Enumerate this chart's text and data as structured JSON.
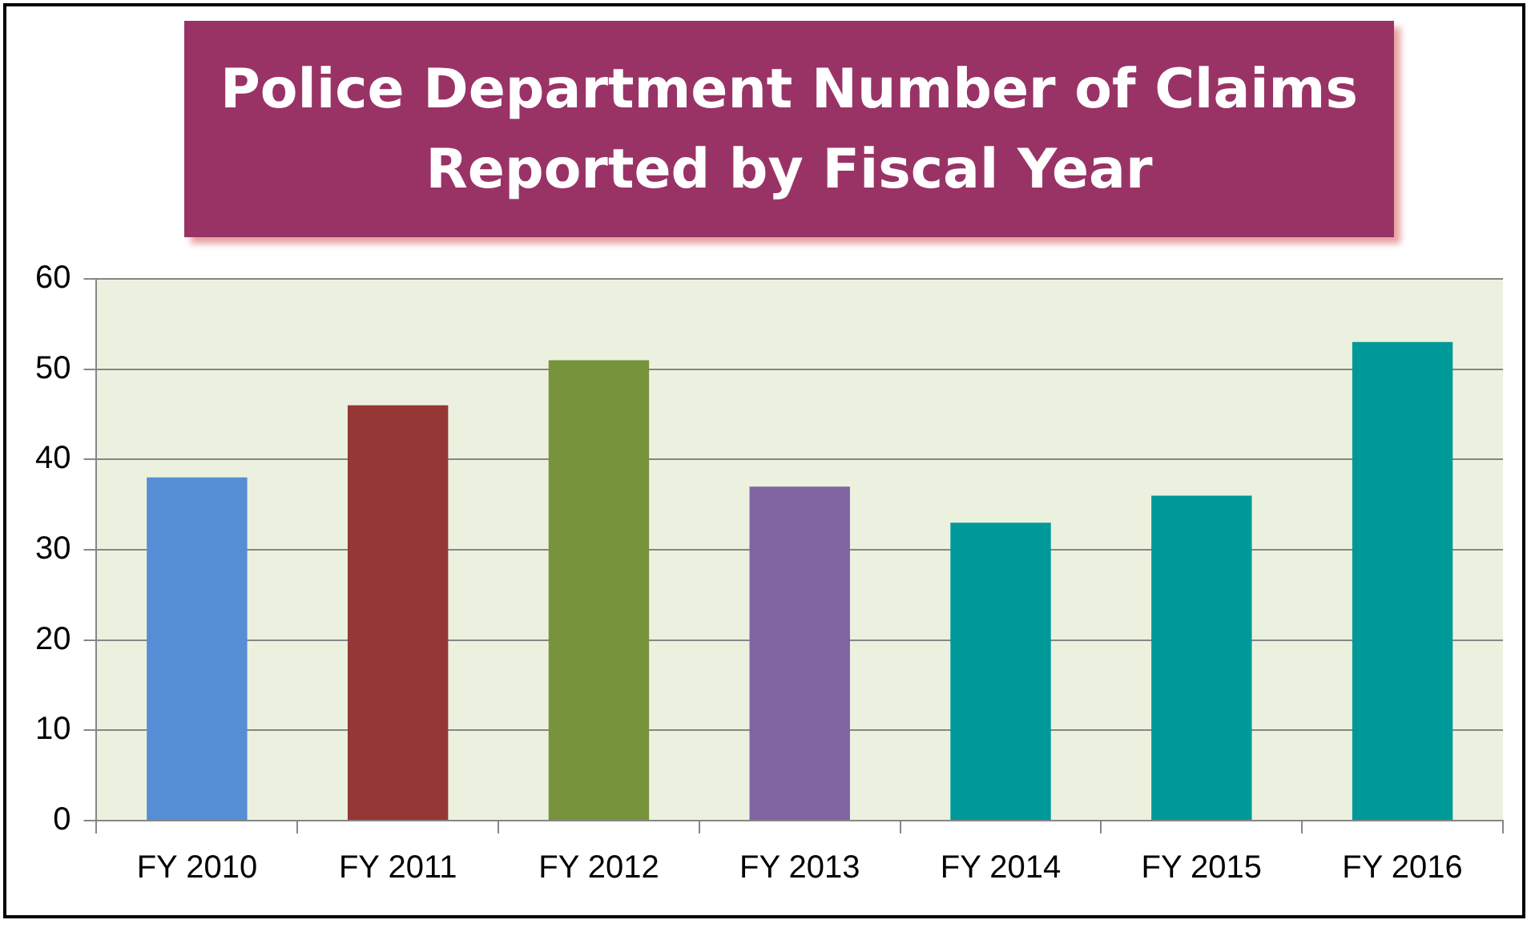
{
  "chart_data": {
    "type": "bar",
    "title": "Police Department Number of Claims Reported by Fiscal Year",
    "categories": [
      "FY 2010",
      "FY 2011",
      "FY 2012",
      "FY 2013",
      "FY 2014",
      "FY 2015",
      "FY 2016"
    ],
    "values": [
      38,
      46,
      51,
      37,
      33,
      36,
      53
    ],
    "colors": [
      "#558ed5",
      "#953735",
      "#77933c",
      "#8064a2",
      "#009999",
      "#009999",
      "#009999"
    ],
    "ylim": [
      0,
      60
    ],
    "yticks": [
      0,
      10,
      20,
      30,
      40,
      50,
      60
    ],
    "grid": "y",
    "legend": false
  }
}
